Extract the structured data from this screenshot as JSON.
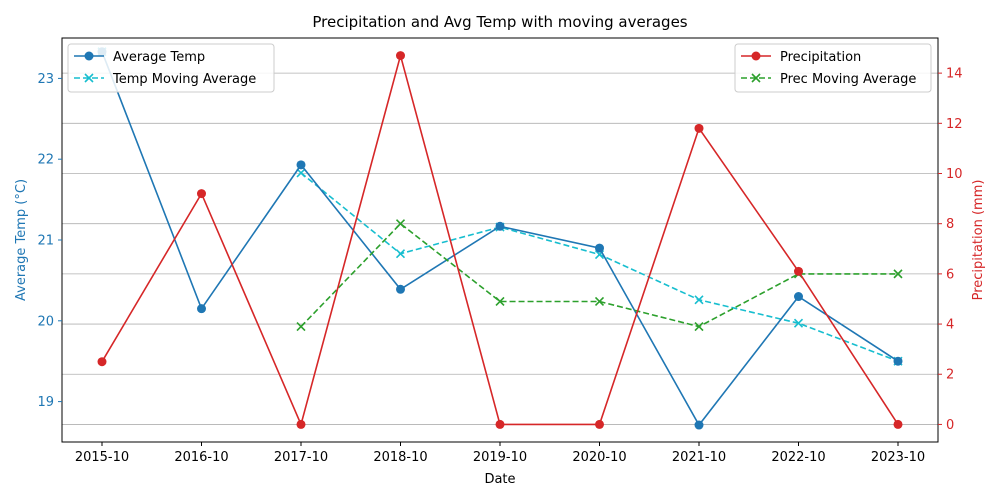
{
  "chart_data": {
    "type": "line",
    "title": "Precipitation and Avg Temp with moving averages",
    "xlabel": "Date",
    "ylabel_left": "Average Temp (°C)",
    "ylabel_right": "Precipitation (mm)",
    "categories": [
      "2015-10",
      "2016-10",
      "2017-10",
      "2018-10",
      "2019-10",
      "2020-10",
      "2021-10",
      "2022-10",
      "2023-10"
    ],
    "ylim_left": [
      18.5,
      23.5
    ],
    "yticks_left": [
      "19",
      "20",
      "21",
      "22",
      "23"
    ],
    "ylim_right": [
      -0.7,
      15.4
    ],
    "yticks_right": [
      "0",
      "2",
      "4",
      "6",
      "8",
      "10",
      "12",
      "14"
    ],
    "grid": "horizontal, right axis",
    "series": [
      {
        "name": "Average Temp",
        "axis": "left",
        "color": "#1f77b4",
        "style": "solid",
        "marker": "circle",
        "values": [
          23.33,
          20.15,
          21.93,
          20.39,
          21.17,
          20.9,
          18.71,
          20.3,
          19.5
        ]
      },
      {
        "name": "Temp Moving Average",
        "axis": "left",
        "color": "#17becf",
        "style": "dashed",
        "marker": "x",
        "values": [
          23.33,
          null,
          21.83,
          20.83,
          21.16,
          20.82,
          20.26,
          19.97,
          19.5
        ]
      },
      {
        "name": "Precipitation",
        "axis": "right",
        "color": "#d62728",
        "style": "solid",
        "marker": "circle",
        "values": [
          2.5,
          9.2,
          0.0,
          14.7,
          0.0,
          0.0,
          11.8,
          6.1,
          0.0
        ]
      },
      {
        "name": "Prec Moving Average",
        "axis": "right",
        "color": "#2ca02c",
        "style": "dashed",
        "marker": "x",
        "values": [
          null,
          null,
          3.9,
          8.0,
          4.9,
          4.9,
          3.9,
          6.0,
          6.0
        ]
      }
    ],
    "legend_left": {
      "placement": "upper-left",
      "entries": [
        "Average Temp",
        "Temp Moving Average"
      ]
    },
    "legend_right": {
      "placement": "upper-right",
      "entries": [
        "Precipitation",
        "Prec Moving Average"
      ]
    }
  }
}
